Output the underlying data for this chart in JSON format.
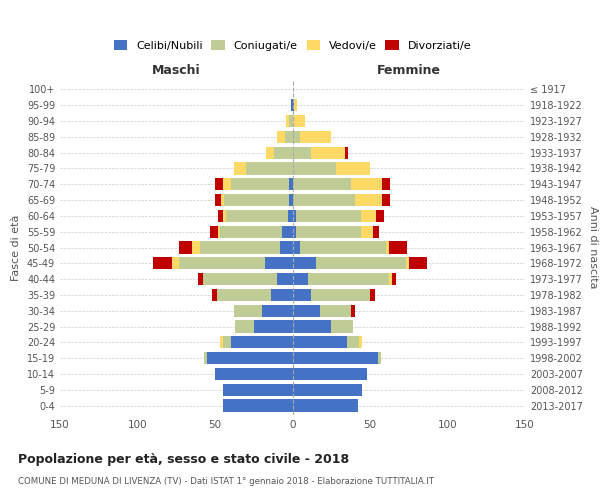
{
  "age_groups": [
    "0-4",
    "5-9",
    "10-14",
    "15-19",
    "20-24",
    "25-29",
    "30-34",
    "35-39",
    "40-44",
    "45-49",
    "50-54",
    "55-59",
    "60-64",
    "65-69",
    "70-74",
    "75-79",
    "80-84",
    "85-89",
    "90-94",
    "95-99",
    "100+"
  ],
  "birth_years": [
    "2013-2017",
    "2008-2012",
    "2003-2007",
    "1998-2002",
    "1993-1997",
    "1988-1992",
    "1983-1987",
    "1978-1982",
    "1973-1977",
    "1968-1972",
    "1963-1967",
    "1958-1962",
    "1953-1957",
    "1948-1952",
    "1943-1947",
    "1938-1942",
    "1933-1937",
    "1928-1932",
    "1923-1927",
    "1918-1922",
    "≤ 1917"
  ],
  "male_celibi": [
    45,
    45,
    50,
    55,
    40,
    25,
    20,
    14,
    10,
    18,
    8,
    7,
    3,
    2,
    2,
    0,
    0,
    0,
    0,
    1,
    0
  ],
  "male_coniugati": [
    0,
    0,
    0,
    2,
    5,
    12,
    18,
    35,
    48,
    55,
    52,
    40,
    40,
    42,
    38,
    30,
    12,
    5,
    2,
    0,
    0
  ],
  "male_vedovi": [
    0,
    0,
    0,
    0,
    2,
    0,
    0,
    0,
    0,
    5,
    5,
    1,
    2,
    2,
    5,
    8,
    5,
    5,
    2,
    0,
    0
  ],
  "male_divorziati": [
    0,
    0,
    0,
    0,
    0,
    0,
    0,
    3,
    3,
    12,
    8,
    5,
    3,
    4,
    5,
    0,
    0,
    0,
    0,
    0,
    0
  ],
  "female_nubili": [
    42,
    45,
    48,
    55,
    35,
    25,
    18,
    12,
    10,
    15,
    5,
    2,
    2,
    0,
    0,
    0,
    0,
    0,
    0,
    1,
    0
  ],
  "female_coniugate": [
    0,
    0,
    0,
    2,
    8,
    14,
    20,
    38,
    52,
    58,
    55,
    42,
    42,
    40,
    38,
    28,
    12,
    5,
    0,
    0,
    0
  ],
  "female_vedove": [
    0,
    0,
    0,
    0,
    2,
    0,
    0,
    0,
    2,
    2,
    2,
    8,
    10,
    18,
    20,
    22,
    22,
    20,
    8,
    2,
    0
  ],
  "female_divorziate": [
    0,
    0,
    0,
    0,
    0,
    0,
    2,
    3,
    3,
    12,
    12,
    4,
    5,
    5,
    5,
    0,
    2,
    0,
    0,
    0,
    0
  ],
  "colors": {
    "celibi_nubili": "#4472C4",
    "coniugati": "#BFCC96",
    "vedovi": "#FFD966",
    "divorziati": "#C00000"
  },
  "xlim": 150,
  "title": "Popolazione per età, sesso e stato civile - 2018",
  "subtitle": "COMUNE DI MEDUNA DI LIVENZA (TV) - Dati ISTAT 1° gennaio 2018 - Elaborazione TUTTITALIA.IT",
  "ylabel_left": "Fasce di età",
  "ylabel_right": "Anni di nascita",
  "xlabel_left": "Maschi",
  "xlabel_right": "Femmine",
  "legend_labels": [
    "Celibi/Nubili",
    "Coniugati/e",
    "Vedovi/e",
    "Divorziati/e"
  ],
  "background_color": "#ffffff",
  "grid_color": "#cccccc"
}
